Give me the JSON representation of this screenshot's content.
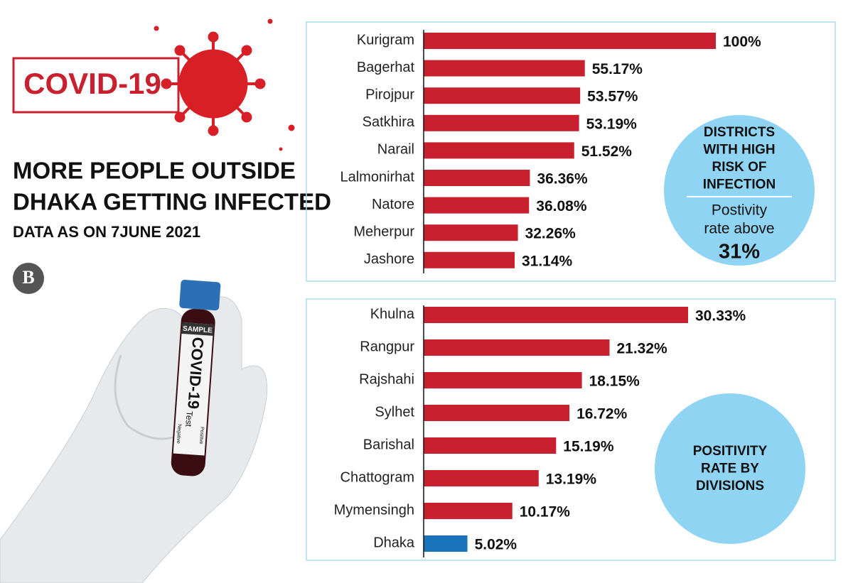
{
  "header": {
    "badge": "COVID-19",
    "title": [
      "MORE PEOPLE OUTSIDE",
      "DHAKA GETTING INFECTED"
    ],
    "subtitle": "DATA AS ON 7JUNE 2021",
    "logo": "B"
  },
  "illustration": {
    "sample": "SAMPLE",
    "tube_title": "COVID-19",
    "tube_sub": "Test",
    "positive": "Positive",
    "negative": "Negative"
  },
  "chart_data": [
    {
      "type": "bar",
      "orientation": "horizontal",
      "annotation": [
        "DISTRICTS",
        "WITH HIGH",
        "RISK OF",
        "INFECTION"
      ],
      "note": [
        "Postivity",
        "rate above"
      ],
      "highlight": "31%",
      "categories": [
        "Kurigram",
        "Bagerhat",
        "Pirojpur",
        "Satkhira",
        "Narail",
        "Lalmonirhat",
        "Natore",
        "Meherpur",
        "Jashore"
      ],
      "values": [
        100,
        55.17,
        53.57,
        53.19,
        51.52,
        36.36,
        36.08,
        32.26,
        31.14
      ],
      "value_labels": [
        "100%",
        "55.17%",
        "53.57%",
        "53.19%",
        "51.52%",
        "36.36%",
        "36.08%",
        "32.26%",
        "31.14%"
      ],
      "colors": [
        "#c8202f",
        "#c8202f",
        "#c8202f",
        "#c8202f",
        "#c8202f",
        "#c8202f",
        "#c8202f",
        "#c8202f",
        "#c8202f"
      ]
    },
    {
      "type": "bar",
      "orientation": "horizontal",
      "annotation": [
        "POSITIVITY",
        "RATE BY",
        "DIVISIONS"
      ],
      "categories": [
        "Khulna",
        "Rangpur",
        "Rajshahi",
        "Sylhet",
        "Barishal",
        "Chattogram",
        "Mymensingh",
        "Dhaka"
      ],
      "values": [
        30.33,
        21.32,
        18.15,
        16.72,
        15.19,
        13.19,
        10.17,
        5.02
      ],
      "value_labels": [
        "30.33%",
        "21.32%",
        "18.15%",
        "16.72%",
        "15.19%",
        "13.19%",
        "10.17%",
        "5.02%"
      ],
      "colors": [
        "#c8202f",
        "#c8202f",
        "#c8202f",
        "#c8202f",
        "#c8202f",
        "#c8202f",
        "#c8202f",
        "#1a73b8"
      ]
    }
  ]
}
